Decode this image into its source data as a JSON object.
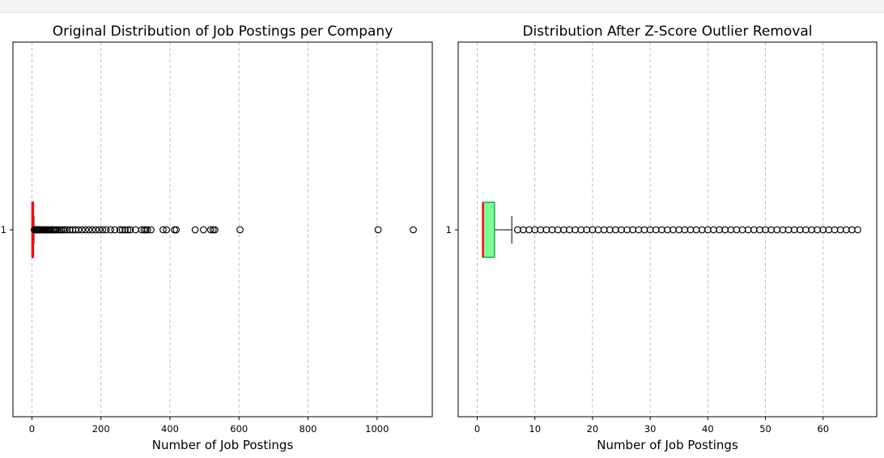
{
  "chart_data": [
    {
      "type": "boxplot",
      "orientation": "horizontal",
      "title": "Original Distribution of Job Postings per Company",
      "xlabel": "Number of Job Postings",
      "ylabel": "",
      "xlim": [
        -55,
        1160
      ],
      "xticks": [
        0,
        200,
        400,
        600,
        800,
        1000
      ],
      "yticks": [
        "1"
      ],
      "grid": "x-dashed",
      "box": {
        "min": 1,
        "q1": 1,
        "median": 1,
        "q3": 3,
        "max": 6,
        "box_color": "#7cfc00",
        "edge_color": "#ff0000",
        "median_color": "#ff0000"
      },
      "outliers": [
        7,
        8,
        9,
        10,
        11,
        12,
        13,
        14,
        15,
        16,
        17,
        18,
        19,
        20,
        22,
        24,
        26,
        28,
        30,
        32,
        35,
        38,
        41,
        44,
        47,
        50,
        54,
        58,
        62,
        66,
        70,
        75,
        80,
        85,
        90,
        96,
        102,
        110,
        118,
        126,
        135,
        145,
        155,
        165,
        175,
        185,
        195,
        205,
        215,
        228,
        240,
        255,
        262,
        270,
        278,
        285,
        300,
        318,
        325,
        330,
        335,
        345,
        380,
        390,
        413,
        418,
        473,
        497,
        518,
        525,
        530,
        603,
        1003,
        1105
      ]
    },
    {
      "type": "boxplot",
      "orientation": "horizontal",
      "title": "Distribution After Z-Score Outlier Removal",
      "xlabel": "Number of Job Postings",
      "ylabel": "",
      "xlim": [
        -3.3,
        69.3
      ],
      "xticks": [
        0,
        10,
        20,
        30,
        40,
        50,
        60
      ],
      "yticks": [
        "1"
      ],
      "grid": "x-dashed",
      "box": {
        "min": 1,
        "q1": 1,
        "median": 1,
        "q3": 3,
        "max": 6,
        "box_color": "#7cff98",
        "edge_color": "#1faa3e",
        "median_color": "#ff0000"
      },
      "outliers": [
        7,
        8,
        9,
        10,
        11,
        12,
        13,
        14,
        15,
        16,
        17,
        18,
        19,
        20,
        21,
        22,
        23,
        24,
        25,
        26,
        27,
        28,
        29,
        30,
        31,
        32,
        33,
        34,
        35,
        36,
        37,
        38,
        39,
        40,
        41,
        42,
        43,
        44,
        45,
        46,
        47,
        48,
        49,
        50,
        51,
        52,
        53,
        54,
        55,
        56,
        57,
        58,
        59,
        60,
        61,
        62,
        63,
        64,
        65,
        66
      ]
    }
  ]
}
